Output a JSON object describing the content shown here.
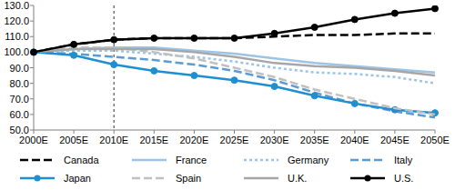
{
  "chart_data": {
    "type": "line",
    "categories": [
      "2000E",
      "2005E",
      "2010E",
      "2015E",
      "2020E",
      "2025E",
      "2030E",
      "2035E",
      "2040E",
      "2045E",
      "2050E"
    ],
    "series": [
      {
        "name": "Canada",
        "color": "#000000",
        "line_style": "dashed",
        "marker": "none",
        "values": [
          100,
          105,
          108,
          109,
          109,
          109,
          110,
          111,
          111,
          112,
          112
        ]
      },
      {
        "name": "France",
        "color": "#9dc3e6",
        "line_style": "solid",
        "marker": "none",
        "values": [
          100,
          102,
          103,
          103,
          101,
          99,
          96,
          93,
          91,
          89,
          87
        ]
      },
      {
        "name": "Germany",
        "color": "#9dc3e6",
        "line_style": "dotted",
        "marker": "none",
        "values": [
          100,
          101,
          101,
          99,
          97,
          94,
          90,
          87,
          86,
          84,
          80
        ]
      },
      {
        "name": "Italy",
        "color": "#5b9bd5",
        "line_style": "dashed",
        "marker": "none",
        "values": [
          100,
          99,
          97,
          95,
          92,
          88,
          82,
          74,
          67,
          62,
          58
        ]
      },
      {
        "name": "Japan",
        "color": "#1f8fd0",
        "line_style": "solid",
        "marker": "circle",
        "values": [
          100,
          98,
          92,
          88,
          85,
          82,
          78,
          72,
          67,
          63,
          61
        ]
      },
      {
        "name": "Spain",
        "color": "#c0c0c0",
        "line_style": "dashed",
        "marker": "none",
        "values": [
          100,
          103,
          103,
          100,
          96,
          90,
          84,
          76,
          70,
          64,
          60
        ]
      },
      {
        "name": "U.K.",
        "color": "#a6a6a6",
        "line_style": "solid",
        "marker": "none",
        "values": [
          100,
          102,
          102,
          102,
          100,
          97,
          93,
          91,
          90,
          88,
          85
        ]
      },
      {
        "name": "U.S.",
        "color": "#000000",
        "line_style": "solid",
        "marker": "circle",
        "values": [
          100,
          105,
          108,
          109,
          109,
          109,
          112,
          116,
          121,
          125,
          128
        ]
      }
    ],
    "ylim": [
      50,
      130
    ],
    "yticks": [
      {
        "value": 50,
        "label": "50.0"
      },
      {
        "value": 60,
        "label": "60.0"
      },
      {
        "value": 70,
        "label": "70.0"
      },
      {
        "value": 80,
        "label": "80.0"
      },
      {
        "value": 90,
        "label": "90.0"
      },
      {
        "value": 100,
        "label": "100.0"
      },
      {
        "value": 110,
        "label": "110.0"
      },
      {
        "value": 120,
        "label": "120.0"
      },
      {
        "value": 130,
        "label": "130.0"
      }
    ],
    "vlines": [
      "2010E"
    ],
    "grid": false,
    "legend": "bottom"
  }
}
